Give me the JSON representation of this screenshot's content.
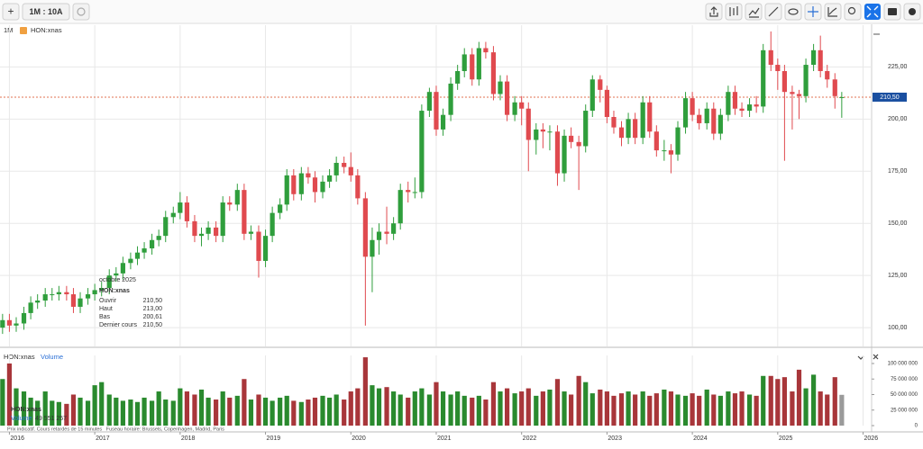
{
  "toolbar": {
    "add": "+",
    "period": "1M : 10A"
  },
  "chart_data": {
    "type": "candlestick",
    "interval": "1M",
    "symbol": "HON:xnas",
    "x": [
      2015.92,
      2016,
      2016.08,
      2016.17,
      2016.25,
      2016.33,
      2016.42,
      2016.5,
      2016.58,
      2016.67,
      2016.75,
      2016.83,
      2016.92,
      2017,
      2017.08,
      2017.17,
      2017.25,
      2017.33,
      2017.42,
      2017.5,
      2017.58,
      2017.67,
      2017.75,
      2017.83,
      2017.92,
      2018,
      2018.08,
      2018.17,
      2018.25,
      2018.33,
      2018.42,
      2018.5,
      2018.58,
      2018.67,
      2018.75,
      2018.83,
      2018.92,
      2019,
      2019.08,
      2019.17,
      2019.25,
      2019.33,
      2019.42,
      2019.5,
      2019.58,
      2019.67,
      2019.75,
      2019.83,
      2019.92,
      2020,
      2020.08,
      2020.17,
      2020.25,
      2020.33,
      2020.42,
      2020.5,
      2020.58,
      2020.67,
      2020.75,
      2020.83,
      2020.92,
      2021,
      2021.08,
      2021.17,
      2021.25,
      2021.33,
      2021.42,
      2021.5,
      2021.58,
      2021.67,
      2021.75,
      2021.83,
      2021.92,
      2022,
      2022.08,
      2022.17,
      2022.25,
      2022.33,
      2022.42,
      2022.5,
      2022.58,
      2022.67,
      2022.75,
      2022.83,
      2022.92,
      2023,
      2023.08,
      2023.17,
      2023.25,
      2023.33,
      2023.42,
      2023.5,
      2023.58,
      2023.67,
      2023.75,
      2023.83,
      2023.92,
      2024,
      2024.08,
      2024.17,
      2024.25,
      2024.33,
      2024.42,
      2024.5,
      2024.58,
      2024.67,
      2024.75,
      2024.83,
      2024.92,
      2025,
      2025.08,
      2025.17,
      2025.25,
      2025.33,
      2025.42,
      2025.5,
      2025.58,
      2025.67,
      2025.75
    ],
    "open": [
      100,
      103.6,
      101,
      102,
      107,
      112,
      113,
      116,
      116,
      117,
      116,
      110,
      114,
      116,
      118,
      119,
      125,
      126,
      131,
      133,
      136,
      138,
      142,
      144,
      153,
      155,
      160,
      151,
      144,
      145,
      148,
      144,
      160,
      159,
      166,
      145,
      146,
      132,
      144,
      155,
      159,
      173,
      164,
      174,
      172,
      165,
      170,
      173,
      179,
      177,
      173,
      162,
      134,
      142,
      146,
      145,
      150,
      166,
      165,
      165,
      204,
      213,
      195,
      202,
      217,
      223,
      231,
      219,
      234,
      232,
      212,
      218,
      202,
      208,
      205,
      190,
      195,
      194,
      194,
      174,
      192,
      189,
      187,
      204,
      219,
      214,
      201,
      196,
      191,
      200,
      191,
      208,
      194,
      185,
      185,
      183,
      196,
      210,
      202,
      198,
      205,
      193,
      202,
      213,
      205,
      204,
      207,
      206,
      233,
      226,
      223,
      213,
      212,
      211,
      226,
      233,
      223,
      219,
      210.5
    ],
    "high": [
      106.6,
      106.6,
      105,
      110,
      115,
      116,
      119,
      119,
      120,
      120,
      119,
      117,
      119,
      121,
      122,
      128,
      129,
      134,
      136,
      139,
      141,
      145,
      147,
      156,
      158,
      165,
      163,
      154,
      148,
      151,
      151,
      163,
      163,
      169,
      169,
      149,
      149,
      147,
      158,
      162,
      176,
      176,
      177,
      177,
      175,
      173,
      176,
      182,
      182,
      184,
      176,
      165,
      148,
      150,
      158,
      153,
      169,
      170,
      172,
      207,
      215,
      216,
      205,
      220,
      226,
      234,
      234,
      237,
      237,
      235,
      221,
      221,
      211,
      211,
      208,
      198,
      198,
      197,
      197,
      195,
      196,
      192,
      207,
      221,
      221,
      216,
      204,
      199,
      203,
      203,
      211,
      211,
      197,
      190,
      188,
      199,
      213,
      213,
      205,
      208,
      208,
      205,
      216,
      216,
      208,
      210,
      211,
      236,
      242,
      229,
      226,
      216,
      214,
      229,
      236,
      240,
      226,
      222,
      213
    ],
    "low": [
      97,
      98,
      98,
      99,
      104,
      109,
      110,
      113,
      113,
      113,
      107,
      107,
      111,
      113,
      115,
      116,
      122,
      123,
      128,
      130,
      133,
      135,
      139,
      141,
      150,
      152,
      148,
      141,
      139,
      142,
      141,
      141,
      156,
      156,
      142,
      142,
      124,
      129,
      141,
      152,
      156,
      161,
      161,
      169,
      160,
      162,
      167,
      170,
      174,
      170,
      159,
      101,
      117,
      135,
      140,
      142,
      147,
      160,
      162,
      162,
      201,
      192,
      192,
      199,
      214,
      220,
      216,
      216,
      229,
      209,
      209,
      199,
      199,
      197,
      175,
      183,
      186,
      185,
      168,
      170,
      186,
      166,
      184,
      201,
      208,
      198,
      193,
      187,
      188,
      188,
      188,
      191,
      182,
      180,
      174,
      180,
      193,
      199,
      195,
      195,
      190,
      190,
      199,
      202,
      201,
      201,
      203,
      203,
      223,
      214,
      180,
      195,
      200,
      208,
      223,
      220,
      215,
      205,
      200.61
    ],
    "close": [
      103.6,
      101,
      102,
      107,
      112,
      113,
      116,
      116,
      117,
      116,
      110,
      114,
      116,
      118,
      119,
      125,
      126,
      131,
      133,
      136,
      138,
      142,
      144,
      153,
      155,
      160,
      151,
      144,
      145,
      148,
      144,
      160,
      159,
      166,
      145,
      146,
      132,
      144,
      155,
      159,
      173,
      164,
      174,
      172,
      165,
      170,
      173,
      179,
      177,
      173,
      162,
      134,
      142,
      146,
      145,
      150,
      166,
      165,
      165,
      204,
      213,
      195,
      202,
      217,
      223,
      231,
      219,
      234,
      232,
      212,
      218,
      202,
      208,
      205,
      190,
      195,
      194,
      194,
      174,
      192,
      189,
      187,
      204,
      219,
      214,
      201,
      196,
      191,
      200,
      191,
      208,
      194,
      185,
      185,
      183,
      196,
      210,
      202,
      198,
      205,
      193,
      202,
      213,
      205,
      204,
      207,
      206,
      233,
      226,
      223,
      213,
      212,
      211,
      226,
      233,
      223,
      219,
      211,
      210.5
    ],
    "volume": [
      75000000,
      100000000,
      60000000,
      55000000,
      45000000,
      40000000,
      55000000,
      40000000,
      38000000,
      35000000,
      50000000,
      45000000,
      40000000,
      65000000,
      70000000,
      50000000,
      45000000,
      40000000,
      42000000,
      38000000,
      45000000,
      40000000,
      55000000,
      42000000,
      40000000,
      60000000,
      55000000,
      50000000,
      58000000,
      45000000,
      42000000,
      55000000,
      45000000,
      48000000,
      75000000,
      42000000,
      50000000,
      45000000,
      40000000,
      45000000,
      48000000,
      40000000,
      38000000,
      42000000,
      45000000,
      48000000,
      45000000,
      50000000,
      42000000,
      55000000,
      60000000,
      110000000,
      65000000,
      60000000,
      62000000,
      55000000,
      50000000,
      45000000,
      55000000,
      60000000,
      50000000,
      70000000,
      55000000,
      50000000,
      55000000,
      48000000,
      45000000,
      48000000,
      42000000,
      70000000,
      55000000,
      60000000,
      52000000,
      55000000,
      60000000,
      48000000,
      55000000,
      58000000,
      75000000,
      55000000,
      50000000,
      80000000,
      70000000,
      52000000,
      58000000,
      55000000,
      48000000,
      52000000,
      55000000,
      50000000,
      55000000,
      48000000,
      52000000,
      58000000,
      55000000,
      50000000,
      48000000,
      52000000,
      48000000,
      58000000,
      50000000,
      48000000,
      55000000,
      52000000,
      55000000,
      50000000,
      48000000,
      80000000,
      80000000,
      75000000,
      78000000,
      55000000,
      90000000,
      60000000,
      82000000,
      55000000,
      50000000,
      78000000,
      49551257
    ],
    "xlim": [
      2015.89,
      2026.1
    ],
    "xticks": [
      2016,
      2017,
      2018,
      2019,
      2020,
      2021,
      2022,
      2023,
      2024,
      2025,
      2026
    ],
    "ylim": [
      91,
      245
    ],
    "yticks": [
      {
        "value": 100,
        "label": "100,00"
      },
      {
        "value": 125,
        "label": "125,00"
      },
      {
        "value": 150,
        "label": "150,00"
      },
      {
        "value": 175,
        "label": "175,00"
      },
      {
        "value": 200,
        "label": "200,00"
      },
      {
        "value": 225,
        "label": "225,00"
      }
    ],
    "volume_ylim": [
      0,
      113000000
    ],
    "volume_yticks": [
      0,
      {
        "value": 25000000,
        "label": "25 000 000"
      },
      {
        "value": 50000000,
        "label": "50 000 000"
      },
      {
        "value": 75000000,
        "label": "75 000 000"
      },
      {
        "value": 100000000,
        "label": "100 000 000"
      }
    ],
    "last_price": 210.5,
    "last_price_label": "210,50",
    "grid": true,
    "colors": {
      "up": "#2f9e3c",
      "down": "#e04a4f",
      "volume_up": "#2a8a2e",
      "volume_down": "#a8363a",
      "volume_last": "#9a9a9a",
      "last_price": "#e07050"
    }
  },
  "tooltip": {
    "date": "octobre 2025",
    "symbol": "HON:xnas",
    "rows": [
      {
        "label": "Ouvrir",
        "value": "210,50"
      },
      {
        "label": "Haut",
        "value": "213,00"
      },
      {
        "label": "Bas",
        "value": "200,61"
      },
      {
        "label": "Dernier cours",
        "value": "210,50"
      }
    ]
  },
  "volume_panel": {
    "symbol": "HON:xnas",
    "name": "Volume",
    "tooltip_symbol": "HON:xnas",
    "tooltip_label": "Volume",
    "tooltip_value": "49 551 257"
  },
  "footer": "Prix indicatif. Cours retardés de 15 minutes   Fuseau horaire: Brussels, Copenhagen, Madrid, Paris"
}
